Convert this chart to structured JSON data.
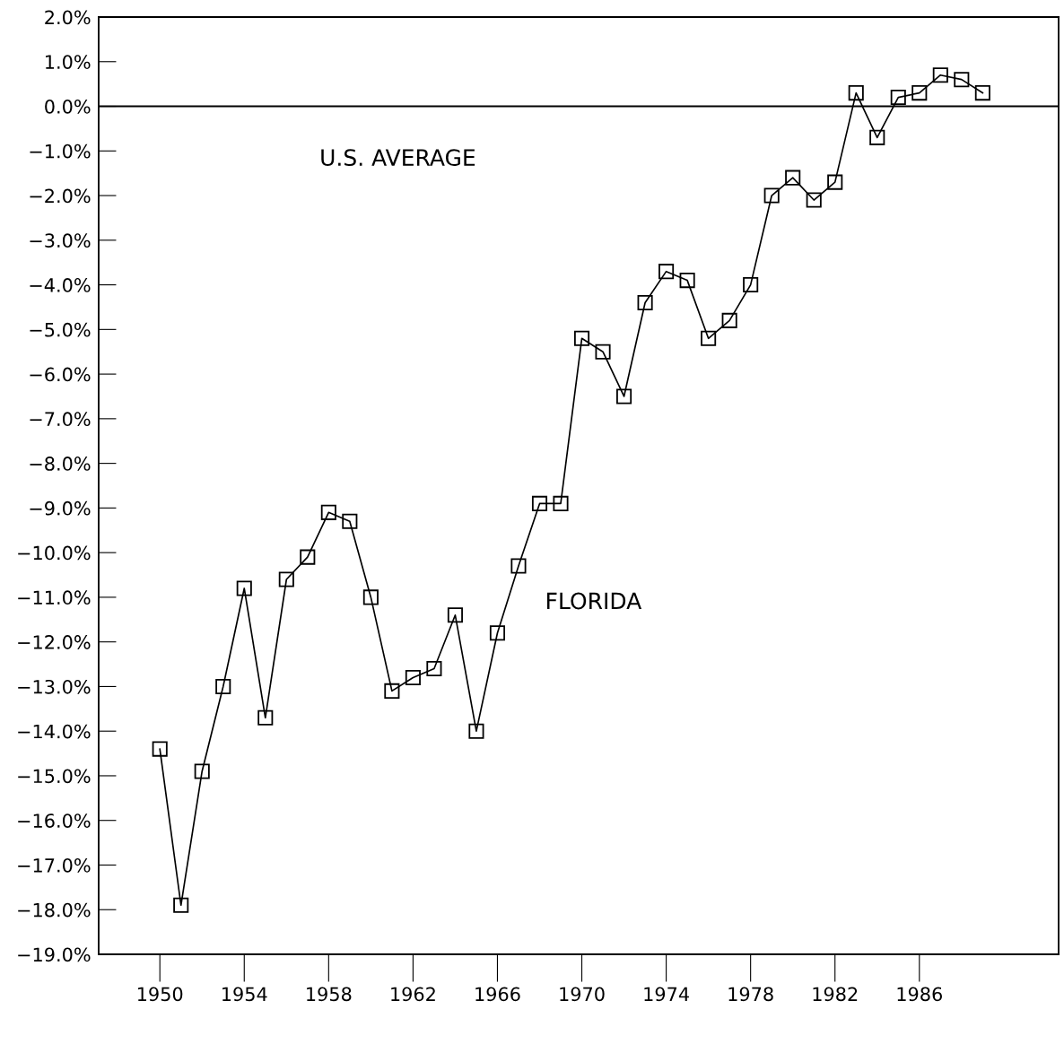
{
  "chart_data": {
    "type": "line",
    "x": [
      1950,
      1951,
      1952,
      1953,
      1954,
      1955,
      1956,
      1957,
      1958,
      1959,
      1960,
      1961,
      1962,
      1963,
      1964,
      1965,
      1966,
      1967,
      1968,
      1969,
      1970,
      1971,
      1972,
      1973,
      1974,
      1975,
      1976,
      1977,
      1978,
      1979,
      1980,
      1981,
      1982,
      1983,
      1984,
      1985,
      1986,
      1987,
      1988,
      1989
    ],
    "series": [
      {
        "name": "FLORIDA",
        "color": "#000000",
        "values": [
          -14.4,
          -17.9,
          -14.9,
          -13.0,
          -10.8,
          -13.7,
          -10.6,
          -10.1,
          -9.1,
          -9.3,
          -11.0,
          -13.1,
          -12.8,
          -12.6,
          -11.4,
          -14.0,
          -11.8,
          -10.3,
          -8.9,
          -8.9,
          -5.2,
          -5.5,
          -6.5,
          -4.4,
          -3.7,
          -3.9,
          -5.2,
          -4.8,
          -4.0,
          -2.0,
          -1.6,
          -2.1,
          -1.7,
          0.3,
          -0.7,
          0.2,
          0.3,
          0.7,
          0.6,
          0.3
        ]
      }
    ],
    "marker": "square",
    "line_style": "solid",
    "grid": false,
    "legend": false,
    "xlim": [
      1947.1,
      1992.6
    ],
    "xticks": [
      1950,
      1954,
      1958,
      1962,
      1966,
      1970,
      1974,
      1978,
      1982,
      1986
    ],
    "ylim": [
      -19,
      2
    ],
    "yticks": [
      {
        "value": -19,
        "label": "−19.0%"
      },
      {
        "value": -18,
        "label": "−18.0%"
      },
      {
        "value": -17,
        "label": "−17.0%"
      },
      {
        "value": -16,
        "label": "−16.0%"
      },
      {
        "value": -15,
        "label": "−15.0%"
      },
      {
        "value": -14,
        "label": "−14.0%"
      },
      {
        "value": -13,
        "label": "−13.0%"
      },
      {
        "value": -12,
        "label": "−12.0%"
      },
      {
        "value": -11,
        "label": "−11.0%"
      },
      {
        "value": -10,
        "label": "−10.0%"
      },
      {
        "value": -9,
        "label": "−9.0%"
      },
      {
        "value": -8,
        "label": "−8.0%"
      },
      {
        "value": -7,
        "label": "−7.0%"
      },
      {
        "value": -6,
        "label": "−6.0%"
      },
      {
        "value": -5,
        "label": "−5.0%"
      },
      {
        "value": -4,
        "label": "−4.0%"
      },
      {
        "value": -3,
        "label": "−3.0%"
      },
      {
        "value": -2,
        "label": "−2.0%"
      },
      {
        "value": -1,
        "label": "−1.0%"
      },
      {
        "value": 0,
        "label": "0.0%"
      },
      {
        "value": 1,
        "label": "1.0%"
      },
      {
        "value": 2,
        "label": "2.0%"
      }
    ],
    "ref_lines": [
      {
        "axis": "y",
        "value": 0,
        "label": "U.S. AVERAGE",
        "color": "#000000",
        "line_style": "solid"
      }
    ]
  }
}
